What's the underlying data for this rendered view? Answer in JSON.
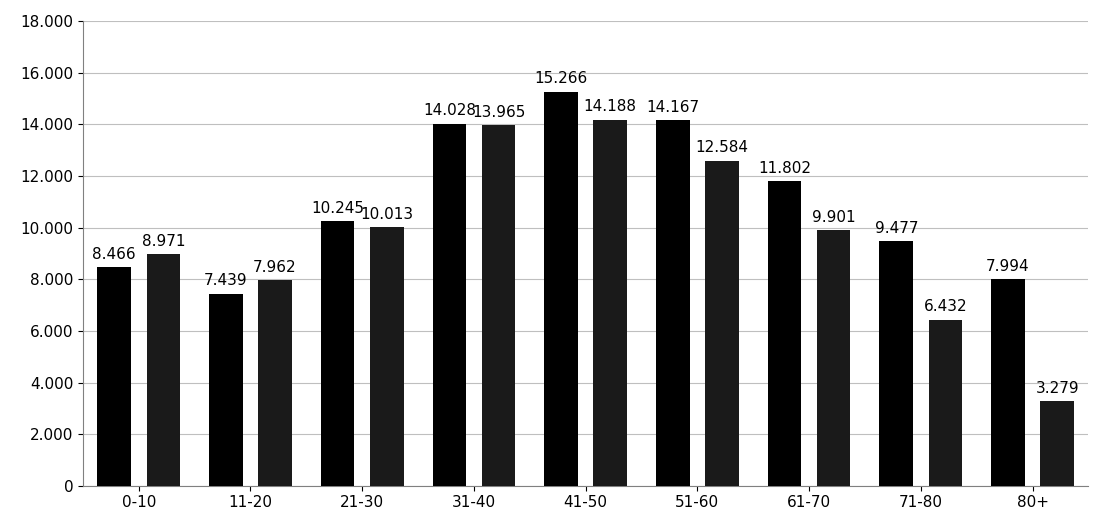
{
  "chart_data": {
    "type": "bar",
    "categories": [
      "0-10",
      "11-20",
      "21-30",
      "31-40",
      "41-50",
      "51-60",
      "61-70",
      "71-80",
      "80+"
    ],
    "series": [
      {
        "color": "#000000",
        "values": [
          8466,
          7439,
          10245,
          14028,
          15266,
          14167,
          11802,
          9477,
          7994
        ],
        "value_labels": [
          "8.466",
          "7.439",
          "10.245",
          "14.028",
          "15.266",
          "14.167",
          "11.802",
          "9.477",
          "7.994"
        ]
      },
      {
        "color": "#1a1a1a",
        "values": [
          8971,
          7962,
          10013,
          13965,
          14188,
          12584,
          9901,
          6432,
          3279
        ],
        "value_labels": [
          "8.971",
          "7.962",
          "10.013",
          "13.965",
          "14.188",
          "12.584",
          "9.901",
          "6.432",
          "3.279"
        ]
      }
    ],
    "ylim": [
      0,
      18000
    ],
    "yticks": [
      0,
      {
        "value": 2000,
        "label": "2.000"
      },
      {
        "value": 4000,
        "label": "4.000"
      },
      {
        "value": 6000,
        "label": "6.000"
      },
      {
        "value": 8000,
        "label": "8.000"
      },
      {
        "value": 10000,
        "label": "10.000"
      },
      {
        "value": 12000,
        "label": "12.000"
      },
      {
        "value": 14000,
        "label": "14.000"
      },
      {
        "value": 16000,
        "label": "16.000"
      },
      {
        "value": 18000,
        "label": "18.000"
      }
    ],
    "grid": true,
    "data_labels": true
  }
}
